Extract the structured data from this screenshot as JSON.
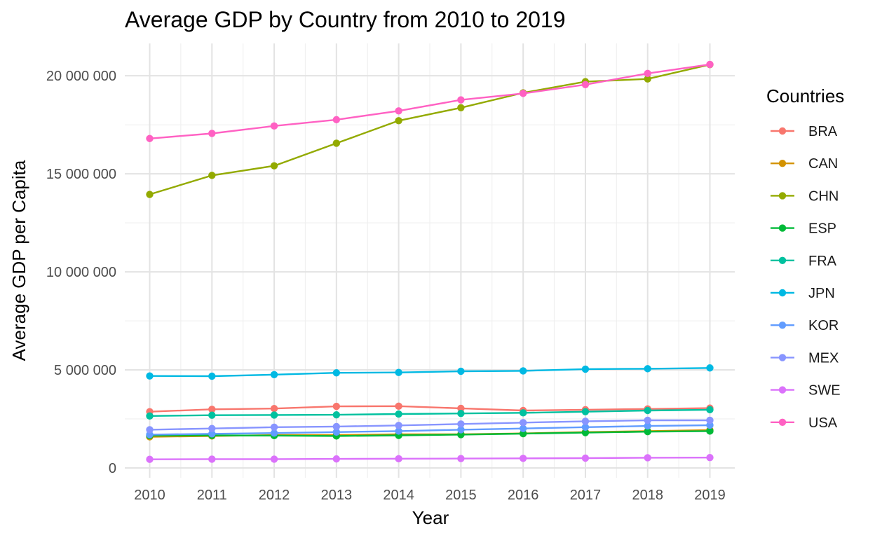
{
  "chart_data": {
    "type": "line",
    "title": "Average GDP by Country from 2010 to 2019",
    "xlabel": "Year",
    "ylabel": "Average GDP per Capita",
    "legend_title": "Countries",
    "legend_position": "right",
    "grid": true,
    "x": [
      2010,
      2011,
      2012,
      2013,
      2014,
      2015,
      2016,
      2017,
      2018,
      2019
    ],
    "x_tick_labels": [
      "2010",
      "2011",
      "2012",
      "2013",
      "2014",
      "2015",
      "2016",
      "2017",
      "2018",
      "2019"
    ],
    "y_ticks": [
      0,
      5000000,
      10000000,
      15000000,
      20000000
    ],
    "y_tick_labels": [
      "0",
      "5 000 000",
      "10 000 000",
      "15 000 000",
      "20 000 000"
    ],
    "ylim": [
      -500000,
      21650000
    ],
    "xlim": [
      2009.6,
      2019.4
    ],
    "series": [
      {
        "name": "BRA",
        "color": "#F8766D",
        "values": [
          2870000,
          2990000,
          3030000,
          3140000,
          3150000,
          3040000,
          2930000,
          2970000,
          3010000,
          3050000
        ]
      },
      {
        "name": "CAN",
        "color": "#D39200",
        "values": [
          1590000,
          1630000,
          1680000,
          1680000,
          1720000,
          1720000,
          1760000,
          1830000,
          1880000,
          1930000
        ]
      },
      {
        "name": "CHN",
        "color": "#93AA00",
        "values": [
          13950000,
          14920000,
          15410000,
          16560000,
          17710000,
          18370000,
          19130000,
          19700000,
          19840000,
          20570000
        ]
      },
      {
        "name": "ESP",
        "color": "#00BA38",
        "values": [
          1650000,
          1660000,
          1650000,
          1630000,
          1660000,
          1700000,
          1750000,
          1800000,
          1850000,
          1880000
        ]
      },
      {
        "name": "FRA",
        "color": "#00C19F",
        "values": [
          2650000,
          2690000,
          2700000,
          2710000,
          2750000,
          2780000,
          2810000,
          2870000,
          2930000,
          2970000
        ]
      },
      {
        "name": "JPN",
        "color": "#00B9E3",
        "values": [
          4690000,
          4680000,
          4760000,
          4850000,
          4870000,
          4930000,
          4950000,
          5040000,
          5060000,
          5100000
        ]
      },
      {
        "name": "KOR",
        "color": "#619CFF",
        "values": [
          1700000,
          1740000,
          1780000,
          1830000,
          1880000,
          1950000,
          2010000,
          2080000,
          2140000,
          2180000
        ]
      },
      {
        "name": "MEX",
        "color": "#8895FF",
        "values": [
          1950000,
          2010000,
          2080000,
          2110000,
          2170000,
          2240000,
          2310000,
          2380000,
          2430000,
          2430000
        ]
      },
      {
        "name": "SWE",
        "color": "#DB72FB",
        "values": [
          440000,
          450000,
          450000,
          460000,
          470000,
          480000,
          490000,
          500000,
          520000,
          530000
        ]
      },
      {
        "name": "USA",
        "color": "#FF61C3",
        "values": [
          16800000,
          17060000,
          17440000,
          17760000,
          18210000,
          18770000,
          19100000,
          19550000,
          20120000,
          20580000
        ]
      }
    ]
  }
}
